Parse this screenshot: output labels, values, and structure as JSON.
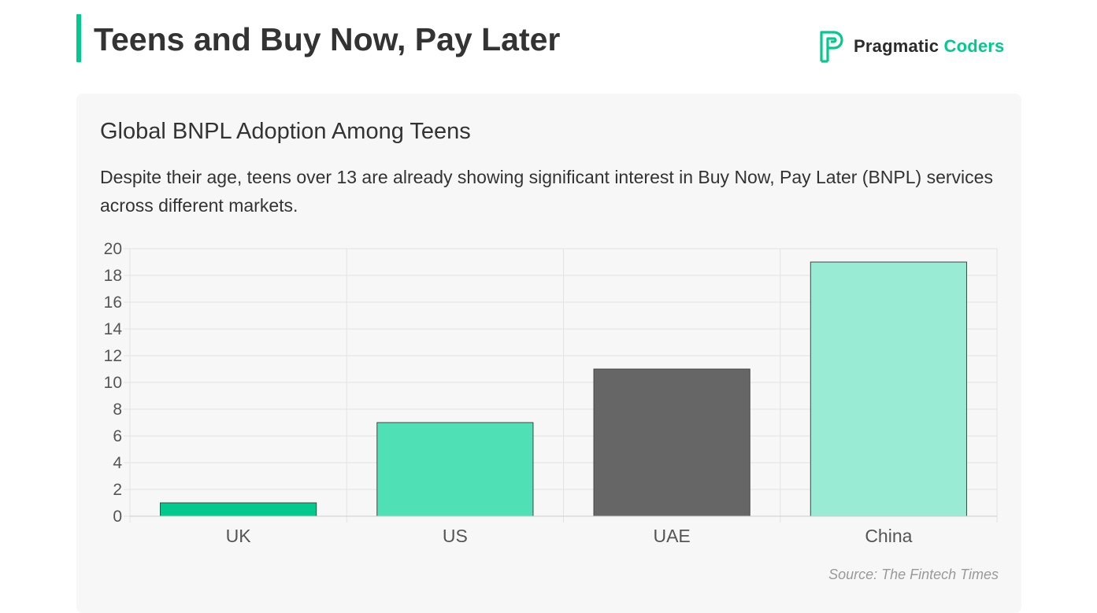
{
  "header": {
    "title": "Teens and Buy Now, Pay Later",
    "logo_word1": "Pragmatic",
    "logo_word2": "Coders"
  },
  "card": {
    "title": "Global BNPL Adoption Among Teens",
    "description": "Despite their age, teens over 13 are already showing significant interest in Buy Now, Pay Later (BNPL) services across different markets.",
    "source": "Source: The Fintech Times"
  },
  "colors": {
    "accent": "#04c98e",
    "bar_colors": [
      "#04c98e",
      "#4fe0b6",
      "#666666",
      "#99ebd4"
    ],
    "grid": "#e3e3e3"
  },
  "chart_data": {
    "type": "bar",
    "categories": [
      "UK",
      "US",
      "UAE",
      "China"
    ],
    "values": [
      1,
      7,
      11,
      19
    ],
    "title": "",
    "xlabel": "",
    "ylabel": "",
    "ylim": [
      0,
      20
    ],
    "yticks": [
      0,
      2,
      4,
      6,
      8,
      10,
      12,
      14,
      16,
      18,
      20
    ],
    "grid": true,
    "legend": "none"
  }
}
